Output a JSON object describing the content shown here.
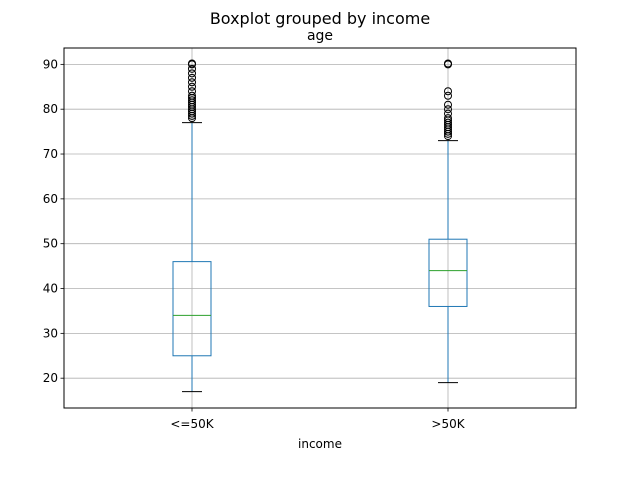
{
  "chart_data": {
    "type": "box",
    "suptitle": "Boxplot grouped by income",
    "title": "age",
    "xlabel": "income",
    "ylabel": "",
    "ylim": [
      13.35,
      93.65
    ],
    "yticks": [
      20,
      30,
      40,
      50,
      60,
      70,
      80,
      90
    ],
    "grid": true,
    "categories": [
      "<=50K",
      ">50K"
    ],
    "boxes": [
      {
        "category": "<=50K",
        "whisker_low": 17,
        "q1": 25,
        "median": 34,
        "q3": 46,
        "whisker_high": 77,
        "outliers": [
          78,
          78.5,
          79,
          79.5,
          80,
          80.5,
          81,
          81.5,
          82,
          82.5,
          83,
          84,
          85,
          86,
          87,
          88,
          89,
          90,
          90.2
        ]
      },
      {
        "category": ">50K",
        "whisker_low": 19,
        "q1": 36,
        "median": 44,
        "q3": 51,
        "whisker_high": 73,
        "outliers": [
          74,
          74.5,
          75,
          75.5,
          76,
          76.5,
          77,
          77.5,
          78,
          79,
          80,
          81,
          83,
          84,
          90,
          90.2
        ]
      }
    ],
    "colors": {
      "box": "#1f77b4",
      "median": "#2ca02c",
      "grid": "#b0b0b0",
      "outlier": "#000000"
    }
  }
}
